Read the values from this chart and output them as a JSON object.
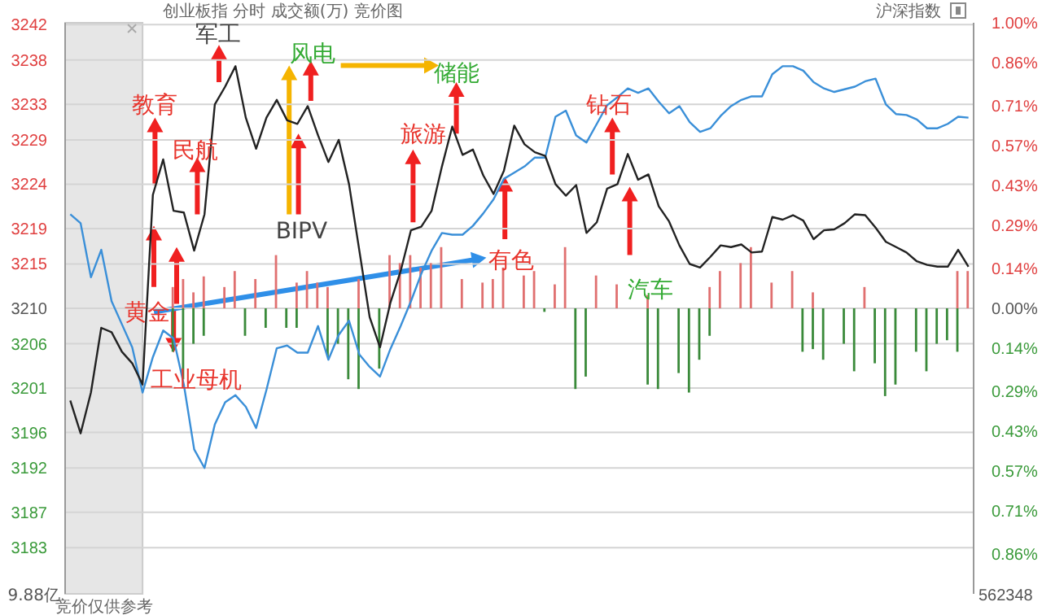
{
  "chart_data": {
    "type": "line",
    "title": "创业板指  分时  成交额(万)  竞价图",
    "subtitle": "沪深指数",
    "categories": [
      null,
      null,
      null,
      null,
      null,
      null,
      null,
      null,
      null,
      null,
      null,
      null,
      null,
      null,
      null,
      null,
      null,
      null,
      null,
      null,
      null,
      null,
      null,
      null,
      null,
      null,
      null,
      null,
      null,
      null,
      null,
      null,
      null,
      null,
      null,
      null,
      null,
      null,
      null,
      null,
      null,
      null,
      null,
      null,
      null,
      null,
      null,
      null,
      null,
      null,
      null,
      null,
      null,
      null,
      null,
      null,
      null,
      null,
      null,
      null,
      null,
      null,
      null,
      null,
      null,
      null,
      null,
      null,
      null,
      null,
      null,
      null,
      null,
      null,
      null,
      null,
      null,
      null,
      null,
      null,
      null,
      null,
      null,
      null,
      null,
      null,
      null,
      null
    ],
    "ylim": [
      3177.8,
      3242.2
    ],
    "yticks": [
      3242,
      3238,
      3233,
      3229,
      3224,
      3219,
      3215,
      3210,
      3206,
      3201,
      3196,
      3192,
      3187,
      3183
    ],
    "y2lim": [
      -1,
      1
    ],
    "y2ticks": [
      {
        "value": 1,
        "label": "1.00%"
      },
      {
        "value": 0.86,
        "label": "0.86%"
      },
      {
        "value": 0.71,
        "label": "0.71%"
      },
      {
        "value": 0.57,
        "label": "0.57%"
      },
      {
        "value": 0.43,
        "label": "0.43%"
      },
      {
        "value": 0.29,
        "label": "0.29%"
      },
      {
        "value": 0.14,
        "label": "0.14%"
      },
      {
        "value": 0,
        "label": "0.00%"
      },
      {
        "value": -0.14,
        "label": "0.14%"
      },
      {
        "value": -0.29,
        "label": "0.29%"
      },
      {
        "value": -0.43,
        "label": "0.43%"
      },
      {
        "value": -0.57,
        "label": "0.57%"
      },
      {
        "value": -0.71,
        "label": "0.71%"
      },
      {
        "value": -0.86,
        "label": "0.86%"
      }
    ],
    "tick_labels": "y",
    "grid": "y",
    "legend": false,
    "marker": "none",
    "line_style": "solid",
    "annotations": [
      "军工",
      "风电",
      "储能",
      "教育",
      "民航",
      "BIPV",
      "旅游",
      "钻石",
      "有色",
      "黄金",
      "工业母机",
      "汽车",
      "竞价仅供参考",
      "9.88亿",
      "562348"
    ],
    "series": [
      {
        "type": "bar",
        "color": "#e07070",
        "base": [
          null,
          null,
          null,
          null,
          null,
          null,
          null,
          null,
          null,
          null,
          3210,
          3210,
          3210,
          3210,
          null,
          3210,
          3210,
          null,
          3210,
          null,
          3210,
          null,
          3210,
          3210,
          3210,
          3210,
          null,
          null,
          3210,
          null,
          null,
          3210,
          3210,
          3210,
          3210,
          3210,
          3210,
          null,
          3210,
          null,
          3210,
          3210,
          3210,
          null,
          3210,
          3210,
          null,
          3210,
          3210,
          null,
          null,
          3210,
          null,
          3210,
          null,
          null,
          3210,
          null,
          null,
          null,
          null,
          null,
          3210,
          3210,
          null,
          3210,
          3210,
          null,
          3210,
          null,
          3210,
          null,
          3210,
          null,
          null,
          null,
          null,
          3210,
          null,
          null,
          null,
          null,
          null,
          null,
          null,
          null,
          3210,
          3210
        ],
        "values": [
          null,
          null,
          null,
          null,
          null,
          null,
          null,
          null,
          null,
          null,
          2.4,
          3.3,
          1.8,
          3.6,
          null,
          2.4,
          4.2,
          null,
          3.3,
          null,
          6.0,
          null,
          2.9,
          4.2,
          2.9,
          2.4,
          null,
          null,
          3.3,
          null,
          null,
          6.0,
          5.1,
          6.0,
          4.6,
          5.1,
          6.9,
          null,
          3.3,
          null,
          2.9,
          3.3,
          4.6,
          null,
          3.7,
          4.2,
          null,
          2.7,
          6.9,
          null,
          null,
          3.7,
          null,
          2.7,
          null,
          null,
          1.5,
          null,
          null,
          null,
          null,
          null,
          2.4,
          4.2,
          null,
          5.1,
          6.9,
          null,
          2.9,
          null,
          4.2,
          null,
          1.8,
          null,
          null,
          null,
          null,
          2.4,
          null,
          null,
          null,
          null,
          null,
          null,
          null,
          null,
          4.2,
          4.2
        ]
      },
      {
        "type": "bar",
        "color": "#3a8a3a",
        "base": [
          null,
          null,
          null,
          null,
          null,
          null,
          null,
          null,
          null,
          null,
          3210,
          3210,
          3210,
          3210,
          null,
          null,
          null,
          3210,
          null,
          3210,
          null,
          3210,
          3210,
          null,
          null,
          3210,
          3210,
          3210,
          3210,
          null,
          3210,
          null,
          null,
          null,
          null,
          null,
          null,
          null,
          null,
          null,
          null,
          null,
          null,
          null,
          null,
          null,
          3210,
          null,
          null,
          3210,
          3210,
          null,
          null,
          null,
          null,
          null,
          3210,
          3210,
          null,
          3210,
          3210,
          3210,
          3210,
          null,
          null,
          null,
          null,
          null,
          null,
          null,
          null,
          3210,
          3210,
          3210,
          null,
          3210,
          3210,
          null,
          3210,
          3210,
          3210,
          null,
          3210,
          3210,
          3210,
          3210,
          3210,
          null
        ],
        "values": [
          null,
          null,
          null,
          null,
          null,
          null,
          null,
          null,
          null,
          null,
          -4.9,
          -8.0,
          -4.0,
          -3.1,
          null,
          null,
          null,
          -3.1,
          null,
          -2.2,
          null,
          -2.2,
          -2.2,
          null,
          null,
          -5.5,
          -4.0,
          -8.0,
          -9.1,
          null,
          -6.8,
          null,
          null,
          null,
          null,
          null,
          null,
          null,
          null,
          null,
          null,
          null,
          null,
          null,
          null,
          null,
          -0.4,
          null,
          null,
          -9.1,
          -7.7,
          null,
          null,
          null,
          null,
          null,
          -8.6,
          -9.1,
          null,
          -7.3,
          -9.5,
          -5.8,
          -3.1,
          null,
          null,
          null,
          null,
          null,
          null,
          null,
          null,
          -4.9,
          -4.6,
          -5.8,
          null,
          -4.0,
          -7.1,
          null,
          -6.2,
          -9.9,
          -8.6,
          null,
          -4.9,
          -7.1,
          -4.0,
          -3.6,
          -4.9,
          null
        ]
      },
      {
        "color": "#3a8fd8",
        "values": [
          3220.6,
          3219.6,
          3213.5,
          3216.6,
          3210.8,
          3208.2,
          3205.6,
          3200.5,
          3204.5,
          3207.5,
          3206.6,
          3201.4,
          3194.1,
          3192.0,
          3196.9,
          3199.4,
          3200.2,
          3198.9,
          3196.5,
          3200.8,
          3205.5,
          3205.8,
          3205.0,
          3205.0,
          3208.0,
          3204.2,
          3207.0,
          3208.6,
          3204.8,
          3203.4,
          3202.3,
          3205.4,
          3208.0,
          3210.8,
          3213.9,
          3216.5,
          3218.5,
          3218.3,
          3218.3,
          3219.3,
          3220.7,
          3222.3,
          3224.6,
          3225.3,
          3226.0,
          3227.0,
          3227.0,
          3231.6,
          3232.3,
          3229.5,
          3228.7,
          3230.8,
          3232.9,
          3233.8,
          3234.8,
          3234.3,
          3234.8,
          3233.3,
          3232.0,
          3232.8,
          3231.0,
          3229.9,
          3230.3,
          3231.7,
          3232.8,
          3233.5,
          3233.9,
          3233.9,
          3236.4,
          3237.3,
          3237.3,
          3236.8,
          3235.5,
          3234.8,
          3234.4,
          3234.7,
          3235.0,
          3235.6,
          3235.9,
          3233.0,
          3231.9,
          3231.8,
          3231.3,
          3230.3,
          3230.3,
          3230.8,
          3231.6,
          3231.5
        ]
      },
      {
        "color": "#222222",
        "values": [
          3199.6,
          3195.9,
          3200.5,
          3207.8,
          3207.3,
          3205.1,
          3203.8,
          3201.4,
          3222.8,
          3226.8,
          3221.0,
          3220.8,
          3216.5,
          3220.6,
          3233.0,
          3235.0,
          3237.3,
          3231.5,
          3228.0,
          3231.5,
          3233.5,
          3231.2,
          3230.8,
          3232.8,
          3229.5,
          3226.5,
          3229.0,
          3224.0,
          3216.5,
          3209.0,
          3205.6,
          3210.6,
          3214.2,
          3218.8,
          3219.2,
          3221.0,
          3226.0,
          3230.5,
          3227.3,
          3227.9,
          3225.0,
          3222.9,
          3225.5,
          3230.6,
          3228.5,
          3227.6,
          3227.2,
          3224.0,
          3222.7,
          3223.9,
          3218.5,
          3219.7,
          3223.5,
          3224.0,
          3227.4,
          3224.5,
          3225.1,
          3221.5,
          3219.8,
          3217.1,
          3215.0,
          3214.6,
          3215.8,
          3217.1,
          3216.9,
          3217.2,
          3216.3,
          3216.4,
          3220.3,
          3220.0,
          3220.5,
          3219.9,
          3217.8,
          3218.8,
          3218.9,
          3219.6,
          3220.6,
          3220.5,
          3219.1,
          3217.5,
          3216.9,
          3216.3,
          3215.3,
          3214.9,
          3214.7,
          3214.7,
          3216.6,
          3214.7
        ]
      }
    ]
  }
}
